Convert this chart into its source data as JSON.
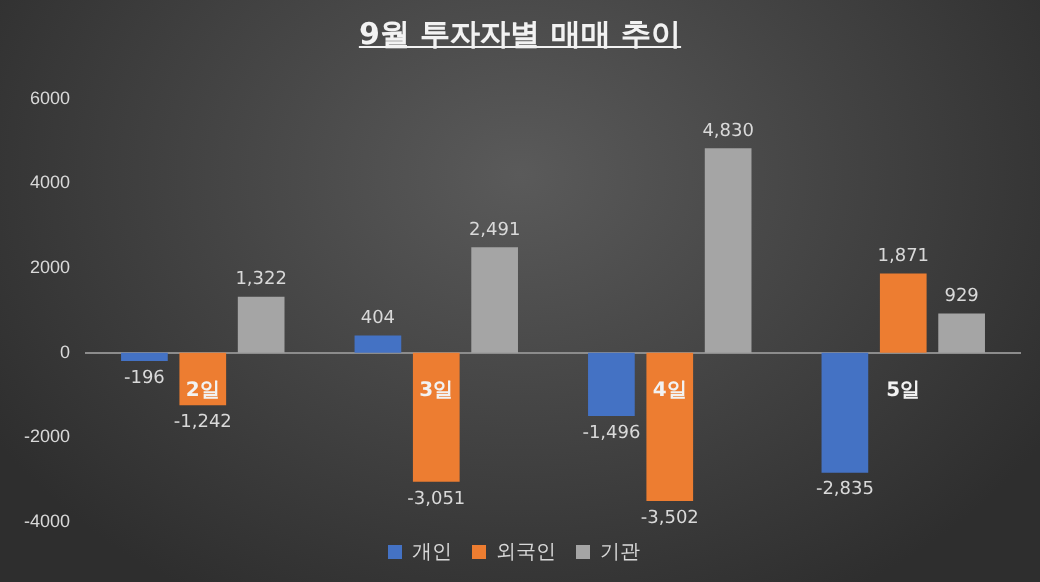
{
  "chart_data": {
    "type": "bar",
    "title": "9월 투자자별 매매 추이",
    "categories": [
      "2일",
      "3일",
      "4일",
      "5일"
    ],
    "series": [
      {
        "name": "개인",
        "color": "#4472c4",
        "values": [
          -196,
          404,
          -1496,
          -2835
        ],
        "value_labels": [
          "-196",
          "404",
          "-1,496",
          "-2,835"
        ]
      },
      {
        "name": "외국인",
        "color": "#ed7d31",
        "values": [
          -1242,
          -3051,
          -3502,
          1871
        ],
        "value_labels": [
          "-1,242",
          "-3,051",
          "-3,502",
          "1,871"
        ]
      },
      {
        "name": "기관",
        "color": "#a5a5a5",
        "values": [
          1322,
          2491,
          4830,
          929
        ],
        "value_labels": [
          "1,322",
          "2,491",
          "4,830",
          "929"
        ]
      }
    ],
    "ylim": [
      -4000,
      6000
    ],
    "yticks": [
      -4000,
      -2000,
      0,
      2000,
      4000,
      6000
    ],
    "grid": false,
    "legend": "bottom"
  }
}
